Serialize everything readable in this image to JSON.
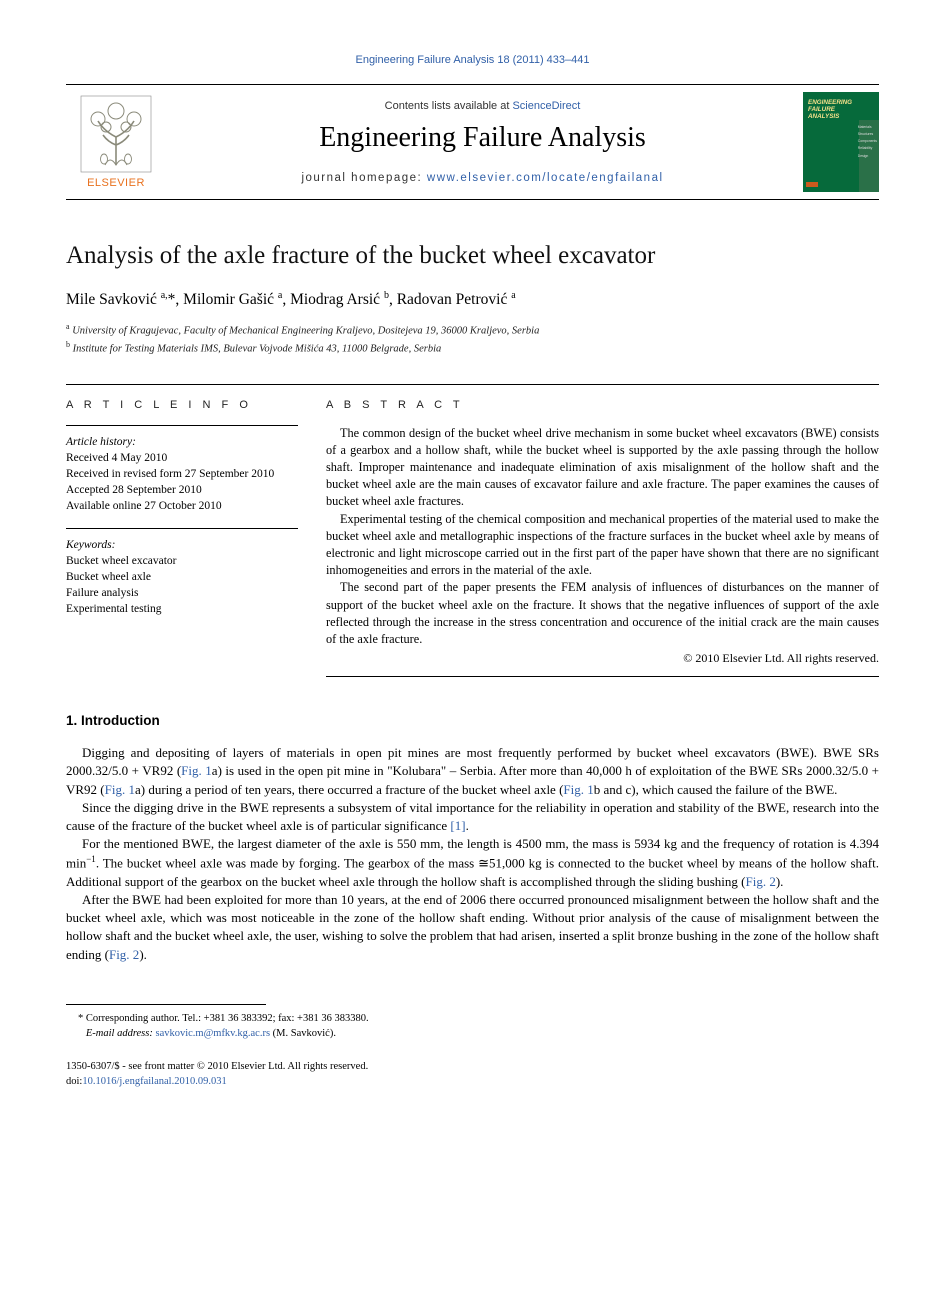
{
  "citation": "Engineering Failure Analysis 18 (2011) 433–441",
  "header": {
    "contents_prefix": "Contents lists available at ",
    "contents_link": "ScienceDirect",
    "journal_name": "Engineering Failure Analysis",
    "homepage_prefix": "journal homepage: ",
    "homepage_url": "www.elsevier.com/locate/engfailanal",
    "elsevier": "ELSEVIER",
    "cover": {
      "title_line1": "ENGINEERING",
      "title_line2": "FAILURE",
      "title_line3": "ANALYSIS",
      "side_items": [
        "Materials",
        "Structures",
        "Components",
        "Reliability",
        "Design"
      ]
    }
  },
  "article": {
    "title": "Analysis of the axle fracture of the bucket wheel excavator",
    "authors_html": "Mile Savković <sup>a,</sup>*, Milomir Gašić <sup>a</sup>, Miodrag Arsić <sup>b</sup>, Radovan Petrović <sup>a</sup>",
    "affiliations": [
      {
        "sup": "a",
        "text": "University of Kragujevac, Faculty of Mechanical Engineering Kraljevo, Dositejeva 19, 36000 Kraljevo, Serbia"
      },
      {
        "sup": "b",
        "text": "Institute for Testing Materials IMS, Bulevar Vojvode Mišića 43, 11000 Belgrade, Serbia"
      }
    ]
  },
  "info": {
    "heading": "A R T I C L E   I N F O",
    "history_label": "Article history:",
    "history": [
      "Received 4 May 2010",
      "Received in revised form 27 September 2010",
      "Accepted 28 September 2010",
      "Available online 27 October 2010"
    ],
    "keywords_label": "Keywords:",
    "keywords": [
      "Bucket wheel excavator",
      "Bucket wheel axle",
      "Failure analysis",
      "Experimental testing"
    ]
  },
  "abstract": {
    "heading": "A B S T R A C T",
    "paragraphs": [
      "The common design of the bucket wheel drive mechanism in some bucket wheel excavators (BWE) consists of a gearbox and a hollow shaft, while the bucket wheel is supported by the axle passing through the hollow shaft. Improper maintenance and inadequate elimination of axis misalignment of the hollow shaft and the bucket wheel axle are the main causes of excavator failure and axle fracture. The paper examines the causes of bucket wheel axle fractures.",
      "Experimental testing of the chemical composition and mechanical properties of the material used to make the bucket wheel axle and metallographic inspections of the fracture surfaces in the bucket wheel axle by means of electronic and light microscope carried out in the first part of the paper have shown that there are no significant inhomogeneities and errors in the material of the axle.",
      "The second part of the paper presents the FEM analysis of influences of disturbances on the manner of support of the bucket wheel axle on the fracture. It shows that the negative influences of support of the axle reflected through the increase in the stress concentration and occurence of the initial crack are the main causes of the axle fracture."
    ],
    "copyright": "© 2010 Elsevier Ltd. All rights reserved."
  },
  "body": {
    "section_heading": "1. Introduction",
    "paragraphs": [
      "Digging and depositing of layers of materials in open pit mines are most frequently performed by bucket wheel excavators (BWE). BWE SRs 2000.32/5.0 + VR92 (<a data-name=\"fig-ref-link\" data-interactable=\"true\">Fig. 1</a>a) is used in the open pit mine in \"Kolubara\" – Serbia. After more than 40,000 h of exploitation of the BWE SRs 2000.32/5.0 + VR92 (<a data-name=\"fig-ref-link\" data-interactable=\"true\">Fig. 1</a>a) during a period of ten years, there occurred a fracture of the bucket wheel axle (<a data-name=\"fig-ref-link\" data-interactable=\"true\">Fig. 1</a>b and c), which caused the failure of the BWE.",
      "Since the digging drive in the BWE represents a subsystem of vital importance for the reliability in operation and stability of the BWE, research into the cause of the fracture of the bucket wheel axle is of particular significance <a data-name=\"cite-ref-link\" data-interactable=\"true\">[1]</a>.",
      "For the mentioned BWE, the largest diameter of the axle is 550 mm, the length is 4500 mm, the mass is 5934 kg and the frequency of rotation is 4.394 min<sup>−1</sup>. The bucket wheel axle was made by forging. The gearbox of the mass ≅51,000 kg is connected to the bucket wheel by means of the hollow shaft. Additional support of the gearbox on the bucket wheel axle through the hollow shaft is accomplished through the sliding bushing (<a data-name=\"fig-ref-link\" data-interactable=\"true\">Fig. 2</a>).",
      "After the BWE had been exploited for more than 10 years, at the end of 2006 there occurred pronounced misalignment between the hollow shaft and the bucket wheel axle, which was most noticeable in the zone of the hollow shaft ending. Without prior analysis of the cause of misalignment between the hollow shaft and the bucket wheel axle, the user, wishing to solve the problem that had arisen, inserted a split bronze bushing in the zone of the hollow shaft ending (<a data-name=\"fig-ref-link\" data-interactable=\"true\">Fig. 2</a>)."
    ]
  },
  "footer": {
    "corr_marker": "*",
    "corr_text": "Corresponding author. Tel.: +381 36 383392; fax: +381 36 383380.",
    "email_label": "E-mail address:",
    "email": "savkovic.m@mfkv.kg.ac.rs",
    "email_who": "(M. Savković).",
    "issn_line": "1350-6307/$ - see front matter © 2010 Elsevier Ltd. All rights reserved.",
    "doi_label": "doi:",
    "doi": "10.1016/j.engfailanal.2010.09.031"
  }
}
